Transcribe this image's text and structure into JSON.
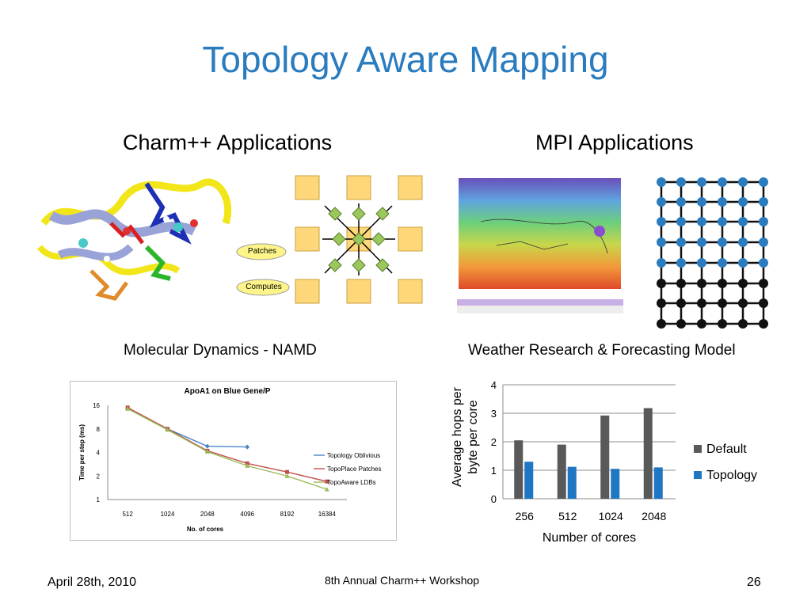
{
  "slide": {
    "title": "Topology Aware Mapping",
    "left_heading": "Charm++ Applications",
    "right_heading": "MPI Applications",
    "left_caption": "Molecular Dynamics - NAMD",
    "right_caption": "Weather Research & Forecasting Model",
    "footer_date": "April 28th, 2010",
    "footer_event": "8th Annual Charm++ Workshop",
    "footer_page": "26"
  },
  "namd_diagram": {
    "patches_label": "Patches",
    "computes_label": "Computes"
  },
  "colors": {
    "title": "#2a7cbf",
    "patch_fill": "#fdd77a",
    "compute_fill": "#9ac85c",
    "default_bar": "#595959",
    "topology_bar": "#1f77c4",
    "grid_node": "#2a7cbf"
  },
  "chart_data": [
    {
      "type": "line",
      "title": "ApoA1 on Blue Gene/P",
      "xlabel": "No. of cores",
      "ylabel": "Time per step (ms)",
      "y_scale": "log2",
      "ylim": [
        1,
        16
      ],
      "yticks": [
        "1",
        "2",
        "4",
        "8",
        "16"
      ],
      "categories": [
        "512",
        "1024",
        "2048",
        "4096",
        "8192",
        "16384"
      ],
      "legend_position": "right",
      "series": [
        {
          "name": "Topology Oblivious",
          "color": "#4a86c5",
          "values": [
            14.5,
            8.0,
            4.8,
            4.7,
            null,
            null
          ]
        },
        {
          "name": "TopoPlace Patches",
          "color": "#c0504d",
          "values": [
            15.0,
            8.0,
            4.2,
            2.9,
            2.25,
            1.7
          ]
        },
        {
          "name": "TopoAware LDBs",
          "color": "#9bbb59",
          "values": [
            14.5,
            7.8,
            4.1,
            2.7,
            2.0,
            1.35
          ]
        }
      ]
    },
    {
      "type": "bar",
      "title": "",
      "xlabel": "Number of cores",
      "ylabel": "Average hops per byte per core",
      "ylim": [
        0,
        4
      ],
      "yticks": [
        "0",
        "1",
        "2",
        "3",
        "4"
      ],
      "categories": [
        "256",
        "512",
        "1024",
        "2048"
      ],
      "legend_position": "right",
      "series": [
        {
          "name": "Default",
          "color": "#595959",
          "values": [
            2.05,
            1.9,
            2.92,
            3.18
          ]
        },
        {
          "name": "Topology",
          "color": "#1f77c4",
          "values": [
            1.3,
            1.12,
            1.05,
            1.1
          ]
        }
      ]
    }
  ]
}
